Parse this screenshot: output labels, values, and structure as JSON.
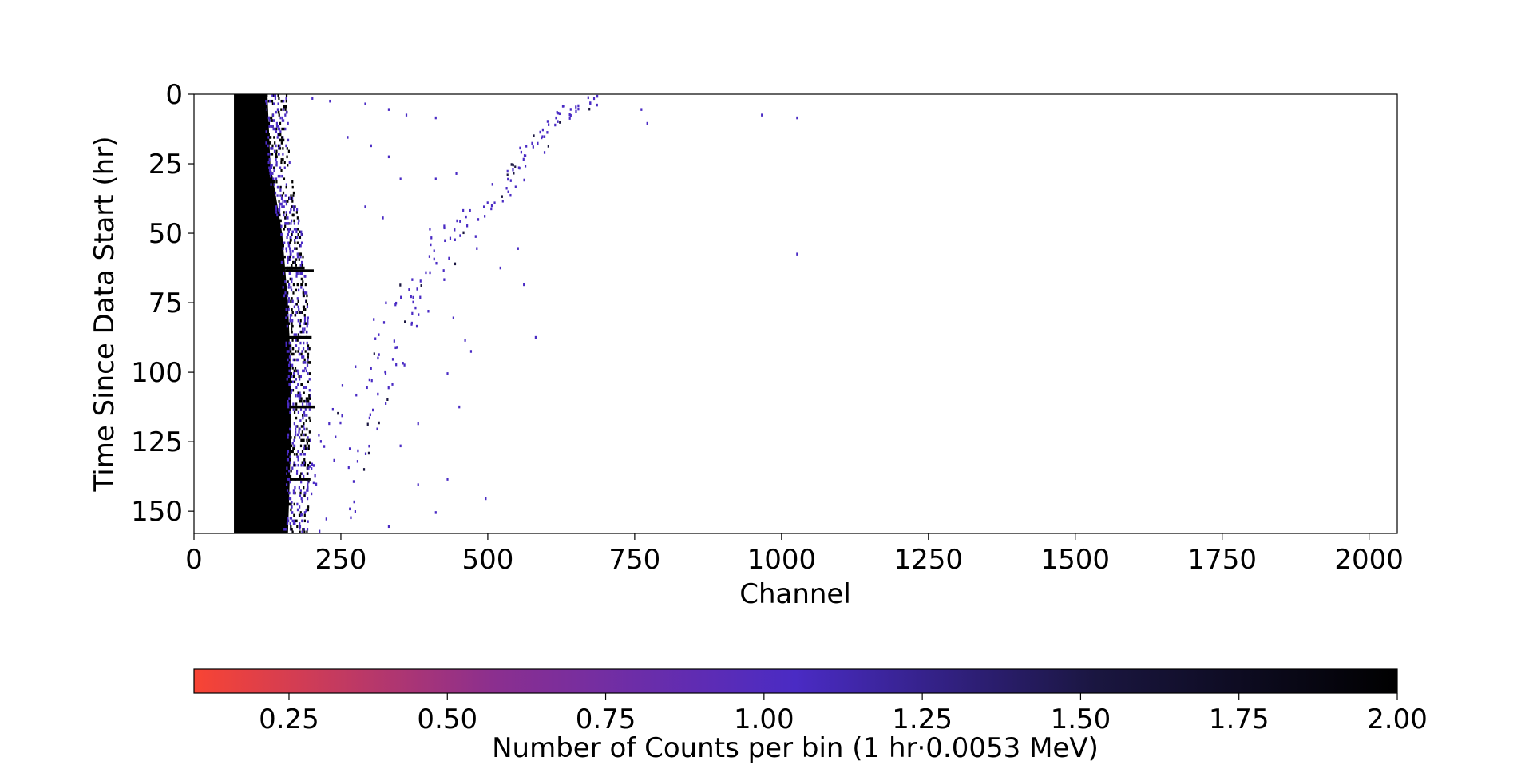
{
  "chart_data": {
    "type": "heatmap",
    "title": "",
    "xlabel": "Channel",
    "ylabel": "Time Since Data Start (hr)",
    "xlim": [
      0,
      2048
    ],
    "ylim": [
      158,
      0
    ],
    "y_axis_inverted": true,
    "x_ticks": [
      0,
      250,
      500,
      750,
      1000,
      1250,
      1500,
      1750,
      2000
    ],
    "x_tick_labels": [
      "0",
      "250",
      "500",
      "750",
      "1000",
      "1250",
      "1500",
      "1750",
      "2000"
    ],
    "y_ticks": [
      0,
      25,
      50,
      75,
      100,
      125,
      150
    ],
    "y_tick_labels": [
      "0",
      "25",
      "50",
      "75",
      "100",
      "125",
      "150"
    ],
    "grid": false,
    "bin_width_hr": 1,
    "dense_region": {
      "channel_start": 68,
      "time_range": [
        0,
        158
      ],
      "edge_channel_by_time": [
        [
          0,
          125
        ],
        [
          25,
          130
        ],
        [
          50,
          150
        ],
        [
          75,
          160
        ],
        [
          100,
          165
        ],
        [
          125,
          165
        ],
        [
          158,
          160
        ]
      ],
      "value": 2.0
    },
    "bright_rows_hr": [
      62,
      63,
      87,
      112,
      138
    ],
    "band_points": [
      [
        680,
        1
      ],
      [
        660,
        3
      ],
      [
        640,
        6
      ],
      [
        620,
        9
      ],
      [
        600,
        12
      ],
      [
        590,
        16
      ],
      [
        575,
        20
      ],
      [
        560,
        24
      ],
      [
        540,
        28
      ],
      [
        520,
        33
      ],
      [
        500,
        38
      ],
      [
        480,
        43
      ],
      [
        455,
        48
      ],
      [
        430,
        53
      ],
      [
        410,
        58
      ],
      [
        395,
        64
      ],
      [
        380,
        70
      ],
      [
        360,
        76
      ],
      [
        345,
        82
      ],
      [
        330,
        88
      ],
      [
        315,
        94
      ],
      [
        300,
        100
      ],
      [
        290,
        106
      ],
      [
        280,
        112
      ],
      [
        270,
        118
      ],
      [
        260,
        124
      ],
      [
        250,
        130
      ],
      [
        240,
        136
      ],
      [
        230,
        142
      ],
      [
        220,
        148
      ],
      [
        210,
        154
      ]
    ],
    "scatter_points": [
      [
        200,
        1
      ],
      [
        230,
        2
      ],
      [
        290,
        3
      ],
      [
        330,
        5
      ],
      [
        360,
        7
      ],
      [
        410,
        8
      ],
      [
        760,
        5
      ],
      [
        770,
        10
      ],
      [
        965,
        7
      ],
      [
        1025,
        8
      ],
      [
        1025,
        57
      ],
      [
        260,
        15
      ],
      [
        300,
        18
      ],
      [
        330,
        22
      ],
      [
        350,
        30
      ],
      [
        410,
        30
      ],
      [
        445,
        28
      ],
      [
        290,
        40
      ],
      [
        320,
        44
      ],
      [
        400,
        48
      ],
      [
        480,
        55
      ],
      [
        520,
        62
      ],
      [
        550,
        55
      ],
      [
        560,
        68
      ],
      [
        580,
        87
      ],
      [
        440,
        80
      ],
      [
        460,
        88
      ],
      [
        470,
        92
      ],
      [
        430,
        100
      ],
      [
        450,
        112
      ],
      [
        380,
        118
      ],
      [
        350,
        126
      ],
      [
        430,
        138
      ],
      [
        380,
        140
      ],
      [
        410,
        150
      ],
      [
        480,
        158
      ],
      [
        495,
        145
      ],
      [
        260,
        158
      ],
      [
        330,
        155
      ]
    ],
    "colorbar": {
      "label": "Number of Counts per bin (1 hr·0.0053 MeV)",
      "range": [
        0.1,
        2.0
      ],
      "ticks": [
        0.25,
        0.5,
        0.75,
        1.0,
        1.25,
        1.5,
        1.75,
        2.0
      ],
      "tick_labels": [
        "0.25",
        "0.50",
        "0.75",
        "1.00",
        "1.25",
        "1.50",
        "1.75",
        "2.00"
      ],
      "colors": [
        "#f84434",
        "#8b2f8f",
        "#4a2bc4",
        "#1a1640",
        "#000000"
      ],
      "orientation": "horizontal",
      "placement": "bottom"
    },
    "marker_color": "#4a2bc4",
    "dense_color": "#000000"
  }
}
